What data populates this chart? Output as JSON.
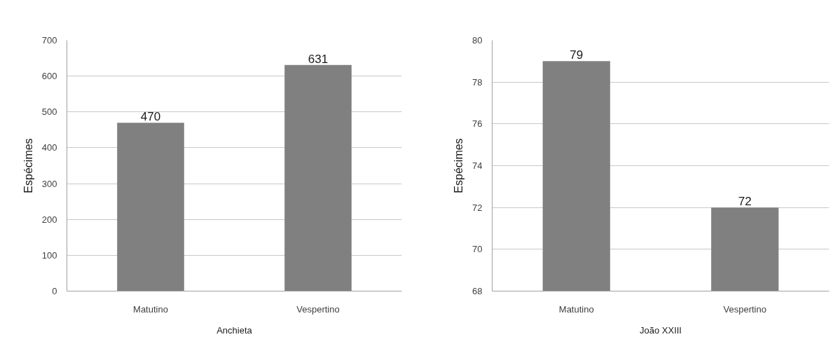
{
  "chart_data": [
    {
      "type": "bar",
      "categories": [
        "Matutino",
        "Vespertino"
      ],
      "values": [
        470,
        631
      ],
      "color": "#808080",
      "ylim": [
        0,
        700
      ],
      "yticks": [
        0,
        100,
        200,
        300,
        400,
        500,
        600,
        700
      ],
      "ylabel": "Espécimes",
      "xlabel": "Anchieta",
      "data_labels": true,
      "grid": "y"
    },
    {
      "type": "bar",
      "categories": [
        "Matutino",
        "Vespertino"
      ],
      "values": [
        79,
        72
      ],
      "color": "#808080",
      "ylim": [
        68,
        80
      ],
      "yticks": [
        68,
        70,
        72,
        74,
        76,
        78,
        80
      ],
      "ylabel": "Espécimes",
      "xlabel": "João XXIII",
      "data_labels": true,
      "grid": "y"
    }
  ]
}
